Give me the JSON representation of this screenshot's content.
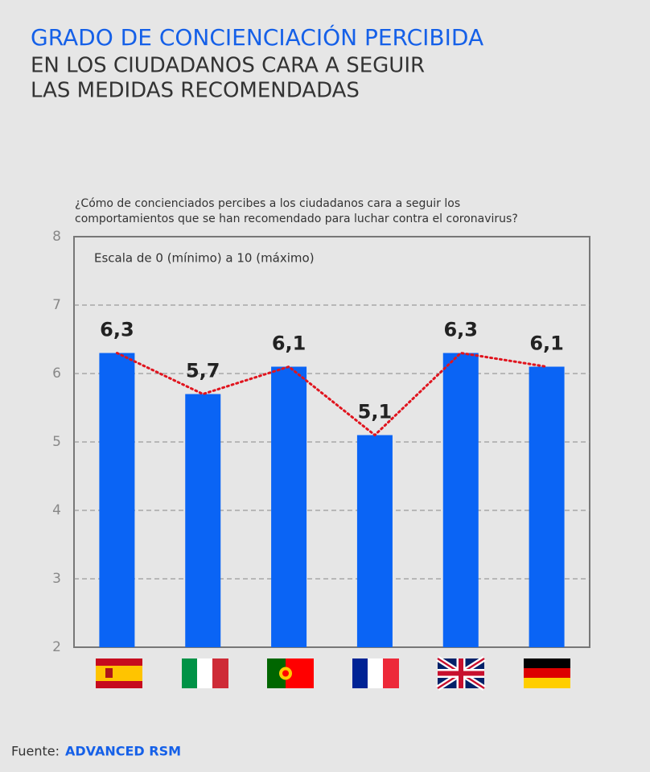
{
  "chart_data": {
    "type": "bar",
    "title": [
      "GRADO DE CONCIENCIACIÓN PERCIBIDA",
      "EN LOS CIUDADANOS CARA A SEGUIR",
      "LAS MEDIDAS RECOMENDADAS"
    ],
    "subtitle": [
      "¿Cómo de concienciados percibes a los ciudadanos cara a seguir los",
      "comportamientos que se han recomendado para luchar contra el coronavirus?"
    ],
    "annotation": "Escala de 0 (mínimo) a 10 (máximo)",
    "source_label": "Fuente:",
    "source": "ADVANCED RSM",
    "categories": [
      null,
      null,
      null,
      null,
      null,
      null
    ],
    "values": [
      6.3,
      5.7,
      6.1,
      5.1,
      6.3,
      6.1
    ],
    "value_labels": [
      "6,3",
      "5,7",
      "6,1",
      "5,1",
      "6,3",
      "6,1"
    ],
    "color": "#0a64f5",
    "trend_color": "#e0141e",
    "ylim": [
      2,
      8
    ],
    "yticks": [
      2,
      3,
      4,
      5,
      6,
      7,
      8
    ],
    "grid": true
  }
}
